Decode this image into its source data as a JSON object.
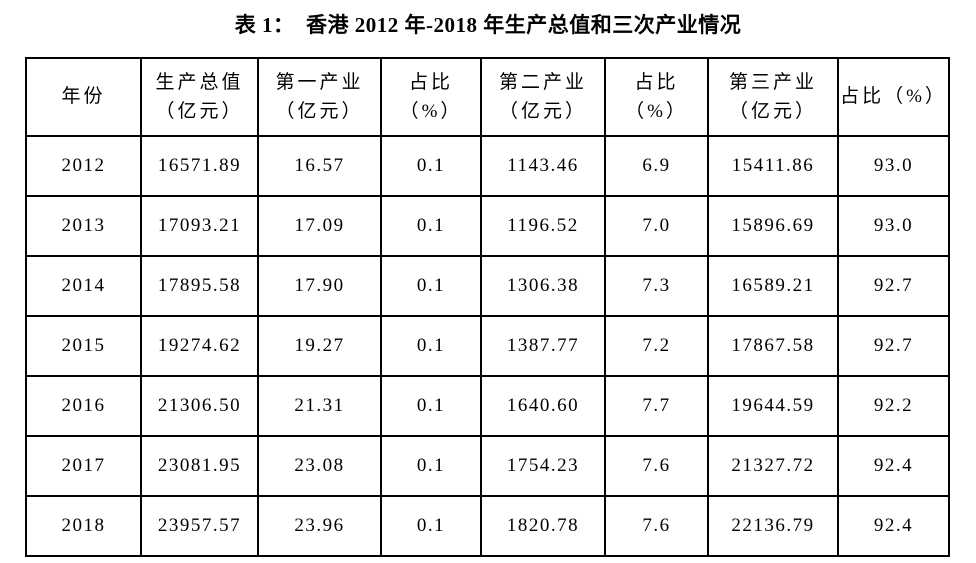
{
  "title": "表 1：  香港 2012 年-2018 年生产总值和三次产业情况",
  "table": {
    "headers": [
      {
        "lines": [
          "年份"
        ]
      },
      {
        "lines": [
          "生产总值",
          "（亿元）"
        ]
      },
      {
        "lines": [
          "第一产业",
          "（亿元）"
        ]
      },
      {
        "lines": [
          "占比",
          "（%）"
        ]
      },
      {
        "lines": [
          "第二产业",
          "（亿元）"
        ]
      },
      {
        "lines": [
          "占比",
          "（%）"
        ]
      },
      {
        "lines": [
          "第三产业",
          "（亿元）"
        ]
      },
      {
        "lines": [
          "占比（%）"
        ]
      }
    ],
    "rows": [
      [
        "2012",
        "16571.89",
        "16.57",
        "0.1",
        "1143.46",
        "6.9",
        "15411.86",
        "93.0"
      ],
      [
        "2013",
        "17093.21",
        "17.09",
        "0.1",
        "1196.52",
        "7.0",
        "15896.69",
        "93.0"
      ],
      [
        "2014",
        "17895.58",
        "17.90",
        "0.1",
        "1306.38",
        "7.3",
        "16589.21",
        "92.7"
      ],
      [
        "2015",
        "19274.62",
        "19.27",
        "0.1",
        "1387.77",
        "7.2",
        "17867.58",
        "92.7"
      ],
      [
        "2016",
        "21306.50",
        "21.31",
        "0.1",
        "1640.60",
        "7.7",
        "19644.59",
        "92.2"
      ],
      [
        "2017",
        "23081.95",
        "23.08",
        "0.1",
        "1754.23",
        "7.6",
        "21327.72",
        "92.4"
      ],
      [
        "2018",
        "23957.57",
        "23.96",
        "0.1",
        "1820.78",
        "7.6",
        "22136.79",
        "92.4"
      ]
    ],
    "colors": {
      "border": "#000000",
      "text": "#000000",
      "background": "#ffffff"
    }
  }
}
